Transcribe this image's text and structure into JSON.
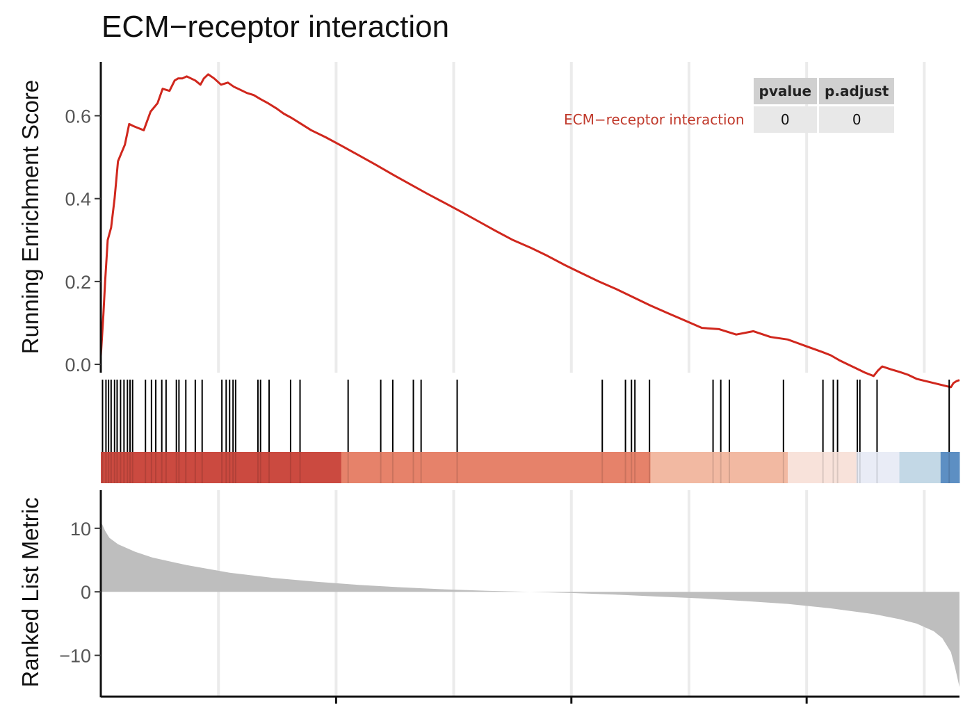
{
  "chart_data": {
    "type": "line",
    "title": "ECM−receptor interaction",
    "panels": {
      "enrichment": {
        "ylabel": "Running Enrichment Score",
        "yticks": [
          "0.0",
          "0.2",
          "0.4",
          "0.6"
        ],
        "ylim": [
          -0.02,
          0.73
        ],
        "x_range": [
          0,
          1
        ],
        "series": [
          {
            "color": "#d0271d",
            "x": [
              0.0,
              0.003,
              0.005,
              0.008,
              0.012,
              0.016,
              0.02,
              0.024,
              0.028,
              0.033,
              0.038,
              0.044,
              0.05,
              0.058,
              0.066,
              0.072,
              0.08,
              0.086,
              0.09,
              0.095,
              0.1,
              0.105,
              0.11,
              0.116,
              0.12,
              0.125,
              0.132,
              0.14,
              0.148,
              0.155,
              0.16,
              0.17,
              0.178,
              0.186,
              0.195,
              0.205,
              0.213,
              0.222,
              0.232,
              0.245,
              0.262,
              0.28,
              0.3,
              0.32,
              0.34,
              0.36,
              0.38,
              0.4,
              0.42,
              0.44,
              0.46,
              0.48,
              0.5,
              0.52,
              0.54,
              0.56,
              0.58,
              0.6,
              0.62,
              0.64,
              0.66,
              0.68,
              0.7,
              0.72,
              0.74,
              0.76,
              0.78,
              0.8,
              0.82,
              0.84,
              0.85,
              0.855,
              0.86,
              0.87,
              0.88,
              0.89,
              0.9,
              0.905,
              0.91,
              0.92,
              0.93,
              0.94,
              0.95,
              0.96,
              0.97,
              0.98,
              0.99,
              0.993,
              0.997,
              1.0
            ],
            "y": [
              0.02,
              0.12,
              0.2,
              0.3,
              0.33,
              0.4,
              0.49,
              0.51,
              0.53,
              0.58,
              0.575,
              0.57,
              0.565,
              0.61,
              0.63,
              0.665,
              0.66,
              0.685,
              0.69,
              0.69,
              0.695,
              0.69,
              0.685,
              0.675,
              0.69,
              0.7,
              0.69,
              0.675,
              0.68,
              0.67,
              0.665,
              0.655,
              0.65,
              0.64,
              0.63,
              0.617,
              0.605,
              0.595,
              0.582,
              0.565,
              0.548,
              0.528,
              0.505,
              0.482,
              0.458,
              0.435,
              0.412,
              0.39,
              0.368,
              0.345,
              0.322,
              0.3,
              0.282,
              0.262,
              0.24,
              0.22,
              0.2,
              0.182,
              0.162,
              0.142,
              0.124,
              0.106,
              0.088,
              0.085,
              0.072,
              0.08,
              0.066,
              0.06,
              0.045,
              0.03,
              0.022,
              0.016,
              0.01,
              0.0,
              -0.01,
              -0.02,
              -0.028,
              -0.015,
              -0.005,
              -0.012,
              -0.018,
              -0.025,
              -0.035,
              -0.04,
              -0.045,
              -0.05,
              -0.055,
              -0.045,
              -0.04,
              -0.038
            ]
          }
        ],
        "table": {
          "headers": [
            "pvalue",
            "p.adjust"
          ],
          "rows": [
            {
              "name": "ECM−receptor interaction",
              "pvalue": "0",
              "p.adjust": "0"
            }
          ]
        }
      },
      "hits": {
        "positions": [
          0.002,
          0.006,
          0.009,
          0.012,
          0.016,
          0.019,
          0.023,
          0.027,
          0.031,
          0.034,
          0.037,
          0.052,
          0.059,
          0.064,
          0.071,
          0.076,
          0.088,
          0.091,
          0.099,
          0.11,
          0.118,
          0.141,
          0.146,
          0.15,
          0.154,
          0.157,
          0.183,
          0.186,
          0.196,
          0.221,
          0.232,
          0.288,
          0.326,
          0.34,
          0.364,
          0.373,
          0.415,
          0.584,
          0.611,
          0.618,
          0.622,
          0.639,
          0.713,
          0.722,
          0.732,
          0.795,
          0.841,
          0.853,
          0.858,
          0.881,
          0.884,
          0.904,
          0.988
        ],
        "ranked_colors": [
          {
            "from": 0.0,
            "to": 0.28,
            "color": "#cb4a40"
          },
          {
            "from": 0.28,
            "to": 0.64,
            "color": "#e6826a"
          },
          {
            "from": 0.64,
            "to": 0.8,
            "color": "#f2b9a2"
          },
          {
            "from": 0.8,
            "to": 0.88,
            "color": "#f8e2da"
          },
          {
            "from": 0.88,
            "to": 0.93,
            "color": "#e9ecf6"
          },
          {
            "from": 0.93,
            "to": 0.978,
            "color": "#c3d8e6"
          },
          {
            "from": 0.978,
            "to": 1.0,
            "color": "#5d8fc3"
          }
        ]
      },
      "ranked": {
        "ylabel": "Ranked List Metric",
        "yticks": [
          "−10",
          "0",
          "10"
        ],
        "ytick_values": [
          -10,
          0,
          10
        ],
        "ylim": [
          -16.5,
          16
        ],
        "color": "#bebebe",
        "x": [
          0.0,
          0.002,
          0.005,
          0.01,
          0.02,
          0.04,
          0.06,
          0.1,
          0.15,
          0.2,
          0.25,
          0.3,
          0.35,
          0.4,
          0.45,
          0.5,
          0.55,
          0.6,
          0.65,
          0.7,
          0.75,
          0.8,
          0.85,
          0.9,
          0.93,
          0.95,
          0.97,
          0.98,
          0.99,
          0.995,
          1.0
        ],
        "y": [
          11.0,
          10.5,
          9.6,
          8.5,
          7.5,
          6.3,
          5.4,
          4.2,
          3.0,
          2.2,
          1.6,
          1.1,
          0.7,
          0.4,
          0.15,
          0.0,
          -0.2,
          -0.45,
          -0.75,
          -1.05,
          -1.45,
          -1.9,
          -2.6,
          -3.5,
          -4.3,
          -5.0,
          -6.2,
          -7.3,
          -9.5,
          -12.0,
          -15.0
        ]
      }
    },
    "colors": {
      "curve": "#d0271d",
      "grid": "#ebebeb",
      "metric_fill": "#bebebe"
    }
  }
}
